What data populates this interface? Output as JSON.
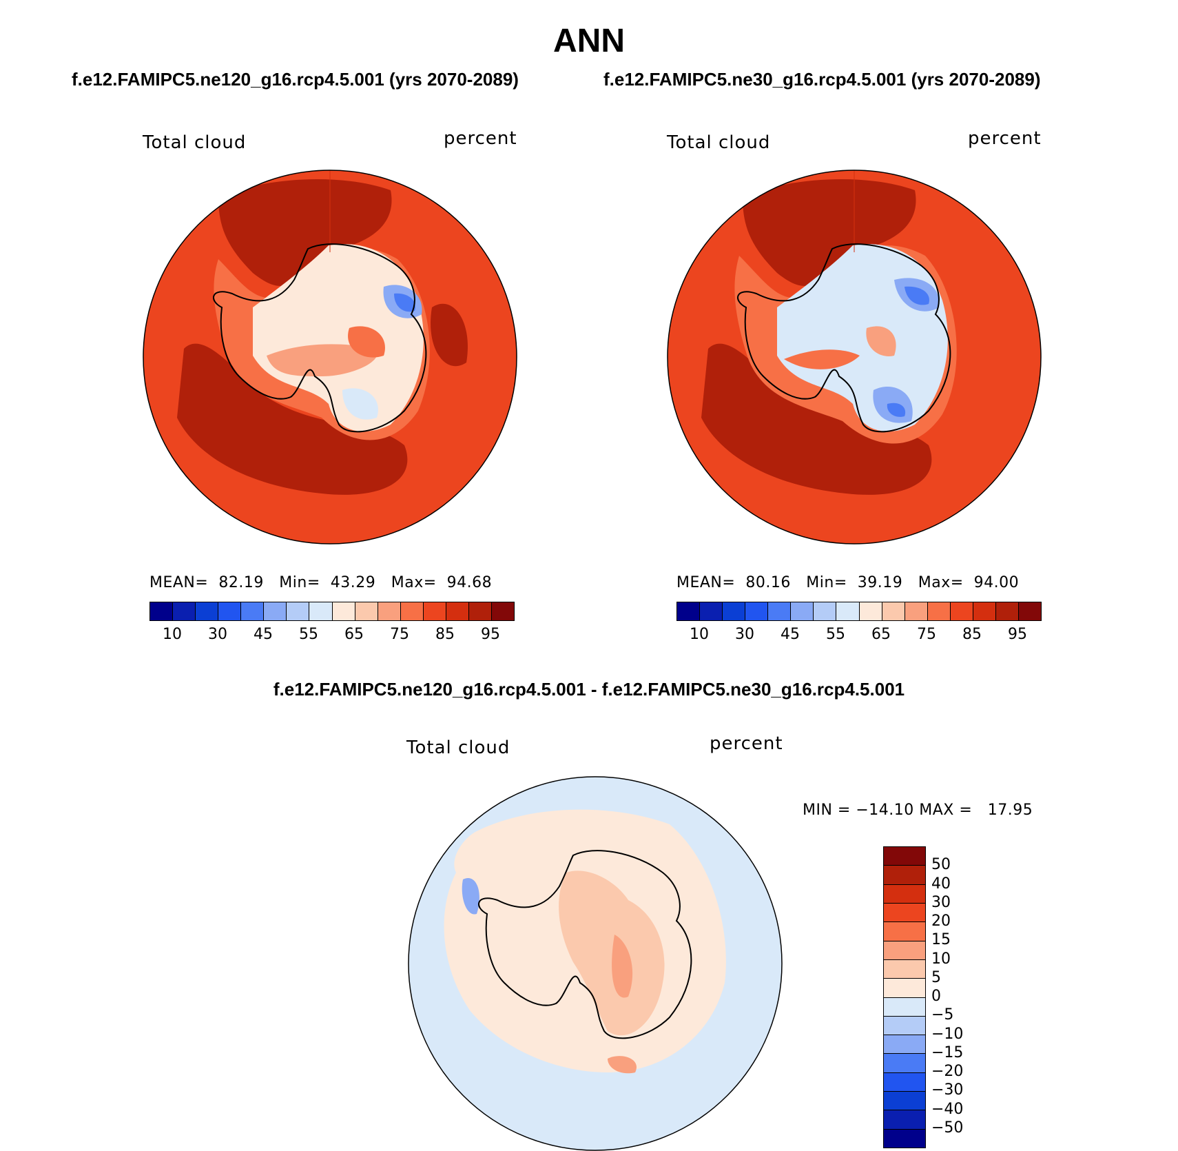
{
  "title": "ANN",
  "panels": [
    {
      "subtitle": "f.e12.FAMIPC5.ne120_g16.rcp4.5.001 (yrs 2070-2089)",
      "variable": "Total cloud",
      "units": "percent",
      "stats": {
        "mean_label": "MEAN=",
        "mean": "82.19",
        "min_label": "Min=",
        "min": "43.29",
        "max_label": "Max=",
        "max": "94.68"
      }
    },
    {
      "subtitle": "f.e12.FAMIPC5.ne30_g16.rcp4.5.001 (yrs 2070-2089)",
      "variable": "Total cloud",
      "units": "percent",
      "stats": {
        "mean_label": "MEAN=",
        "mean": "80.16",
        "min_label": "Min=",
        "min": "39.19",
        "max_label": "Max=",
        "max": "94.00"
      }
    }
  ],
  "diff_panel": {
    "subtitle": "f.e12.FAMIPC5.ne120_g16.rcp4.5.001 - f.e12.FAMIPC5.ne30_g16.rcp4.5.001",
    "variable": "Total cloud",
    "units": "percent",
    "minmax": "MIN = −14.10 MAX =   17.95"
  },
  "colorbar_main": {
    "colors": [
      "#00008b",
      "#0a1fb0",
      "#0b3fd4",
      "#2155f0",
      "#4a7bf5",
      "#8aaaf5",
      "#b4ccf7",
      "#d9e9f9",
      "#fde9da",
      "#fbc9ad",
      "#f9a07e",
      "#f77046",
      "#ec451f",
      "#d42f0f",
      "#b0200a",
      "#820808"
    ],
    "ticks": [
      "10",
      "30",
      "45",
      "55",
      "65",
      "75",
      "85",
      "95"
    ]
  },
  "colorbar_diff": {
    "colors": [
      "#820808",
      "#b0200a",
      "#d42f0f",
      "#ec451f",
      "#f77046",
      "#f9a07e",
      "#fbc9ad",
      "#fde9da",
      "#d9e9f9",
      "#b4ccf7",
      "#8aaaf5",
      "#4a7bf5",
      "#2155f0",
      "#0b3fd4",
      "#0a1fb0",
      "#00008b"
    ],
    "ticks": [
      "50",
      "40",
      "30",
      "20",
      "15",
      "10",
      "5",
      "0",
      "−5",
      "−10",
      "−15",
      "−20",
      "−30",
      "−40",
      "−50"
    ]
  }
}
